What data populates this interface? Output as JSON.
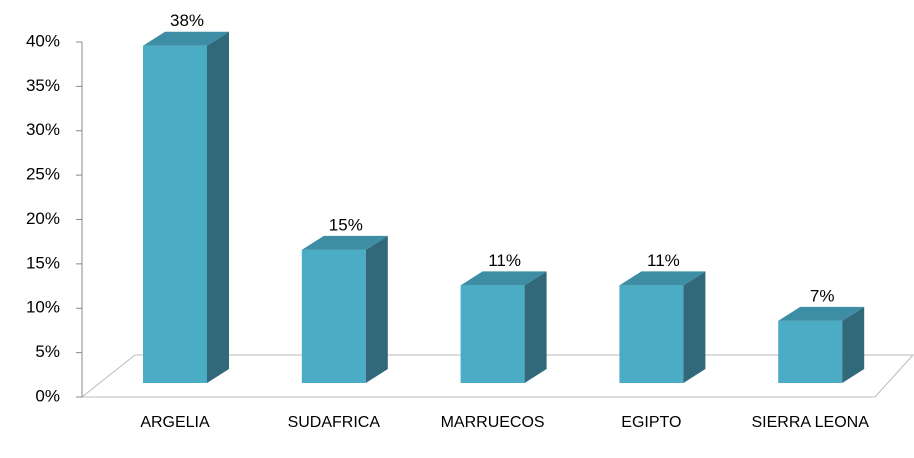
{
  "chart_data": {
    "type": "bar3d",
    "categories": [
      "ARGELIA",
      "SUDAFRICA",
      "MARRUECOS",
      "EGIPTO",
      "SIERRA LEONA"
    ],
    "values": [
      38,
      15,
      11,
      11,
      7
    ],
    "value_labels": [
      "38%",
      "15%",
      "11%",
      "11%",
      "7%"
    ],
    "color": "#4bacc6",
    "ylim": [
      0,
      40
    ],
    "yticks": [
      {
        "value": 0,
        "label": "0%"
      },
      {
        "value": 5,
        "label": "5%"
      },
      {
        "value": 10,
        "label": "10%"
      },
      {
        "value": 15,
        "label": "15%"
      },
      {
        "value": 20,
        "label": "20%"
      },
      {
        "value": 25,
        "label": "25%"
      },
      {
        "value": 30,
        "label": "30%"
      },
      {
        "value": 35,
        "label": "35%"
      },
      {
        "value": 40,
        "label": "40%"
      }
    ]
  }
}
